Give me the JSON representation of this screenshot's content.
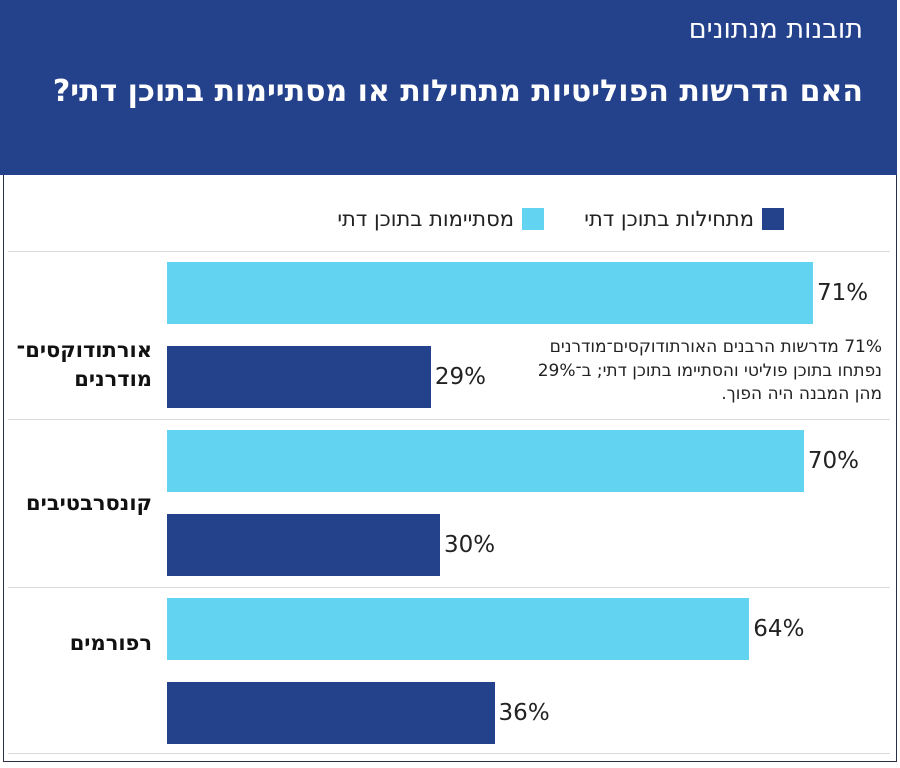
{
  "header": {
    "kicker": "תובנות מנתונים",
    "title": "האם הדרשות הפוליטיות מתחילות או מסתיימות בתוכן דתי?"
  },
  "colors": {
    "header_bg": "#24418c",
    "starts_religious": "#24418c",
    "ends_religious": "#63d3f2"
  },
  "legend": {
    "starts_label": "מתחילות בתוכן דתי",
    "ends_label": "מסתיימות בתוכן דתי"
  },
  "annotation": {
    "lines": [
      "71% מדרשות הרבנים האורתודוקסים־מודרנים",
      "נפתחו בתוכן פוליטי והסתיימו בתוכן דתי; ב־29%",
      "מהן המבנה היה הפוך."
    ]
  },
  "chart_data": {
    "type": "bar",
    "orientation": "horizontal",
    "categories": [
      [
        "אורתודוקסים־",
        "מודרנים"
      ],
      [
        "קונסרבטיבים"
      ],
      [
        "רפורמים"
      ]
    ],
    "series": [
      {
        "name": "מסתיימות בתוכן דתי",
        "values": [
          71,
          70,
          64
        ],
        "labels": [
          "71%",
          "70%",
          "64%"
        ]
      },
      {
        "name": "מתחילות בתוכן דתי",
        "values": [
          29,
          30,
          36
        ],
        "labels": [
          "29%",
          "30%",
          "36%"
        ]
      }
    ],
    "xlim": [
      0,
      71
    ],
    "grid": false,
    "legend_position": "top"
  }
}
